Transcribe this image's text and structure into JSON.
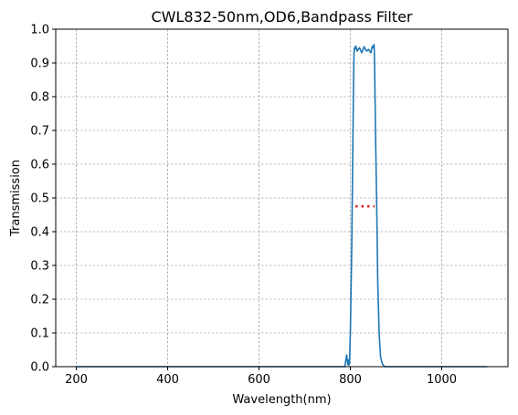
{
  "chart_data": {
    "type": "line",
    "title": "CWL832-50nm,OD6,Bandpass Filter",
    "xlabel": "Wavelength(nm)",
    "ylabel": "Transmission",
    "xlim": [
      155,
      1145
    ],
    "ylim": [
      0,
      1.0
    ],
    "xticks": [
      200,
      400,
      600,
      800,
      1000
    ],
    "yticks": [
      0.0,
      0.1,
      0.2,
      0.3,
      0.4,
      0.5,
      0.6,
      0.7,
      0.8,
      0.9,
      1.0
    ],
    "grid": true,
    "series": [
      {
        "color": "#1f77b4",
        "style": "solid",
        "x": [
          200,
          780,
          788,
          790,
          792,
          793,
          794,
          795,
          796,
          797,
          798,
          800,
          803,
          805,
          807,
          808,
          809,
          810,
          812,
          815,
          820,
          825,
          830,
          835,
          840,
          845,
          848,
          850,
          852,
          853,
          855,
          858,
          860,
          863,
          866,
          870,
          875,
          880,
          1100
        ],
        "y": [
          0.0,
          0.0,
          0.0,
          0.02,
          0.035,
          0.02,
          0.01,
          0.005,
          0.02,
          0.005,
          0.01,
          0.1,
          0.35,
          0.6,
          0.85,
          0.93,
          0.945,
          0.94,
          0.95,
          0.935,
          0.945,
          0.93,
          0.948,
          0.935,
          0.94,
          0.93,
          0.95,
          0.945,
          0.955,
          0.9,
          0.7,
          0.45,
          0.25,
          0.1,
          0.03,
          0.008,
          0.0,
          0.0,
          0.0
        ]
      },
      {
        "color": "#d62728",
        "style": "dotted",
        "x": [
          811,
          853
        ],
        "y": [
          0.475,
          0.475
        ]
      }
    ]
  }
}
